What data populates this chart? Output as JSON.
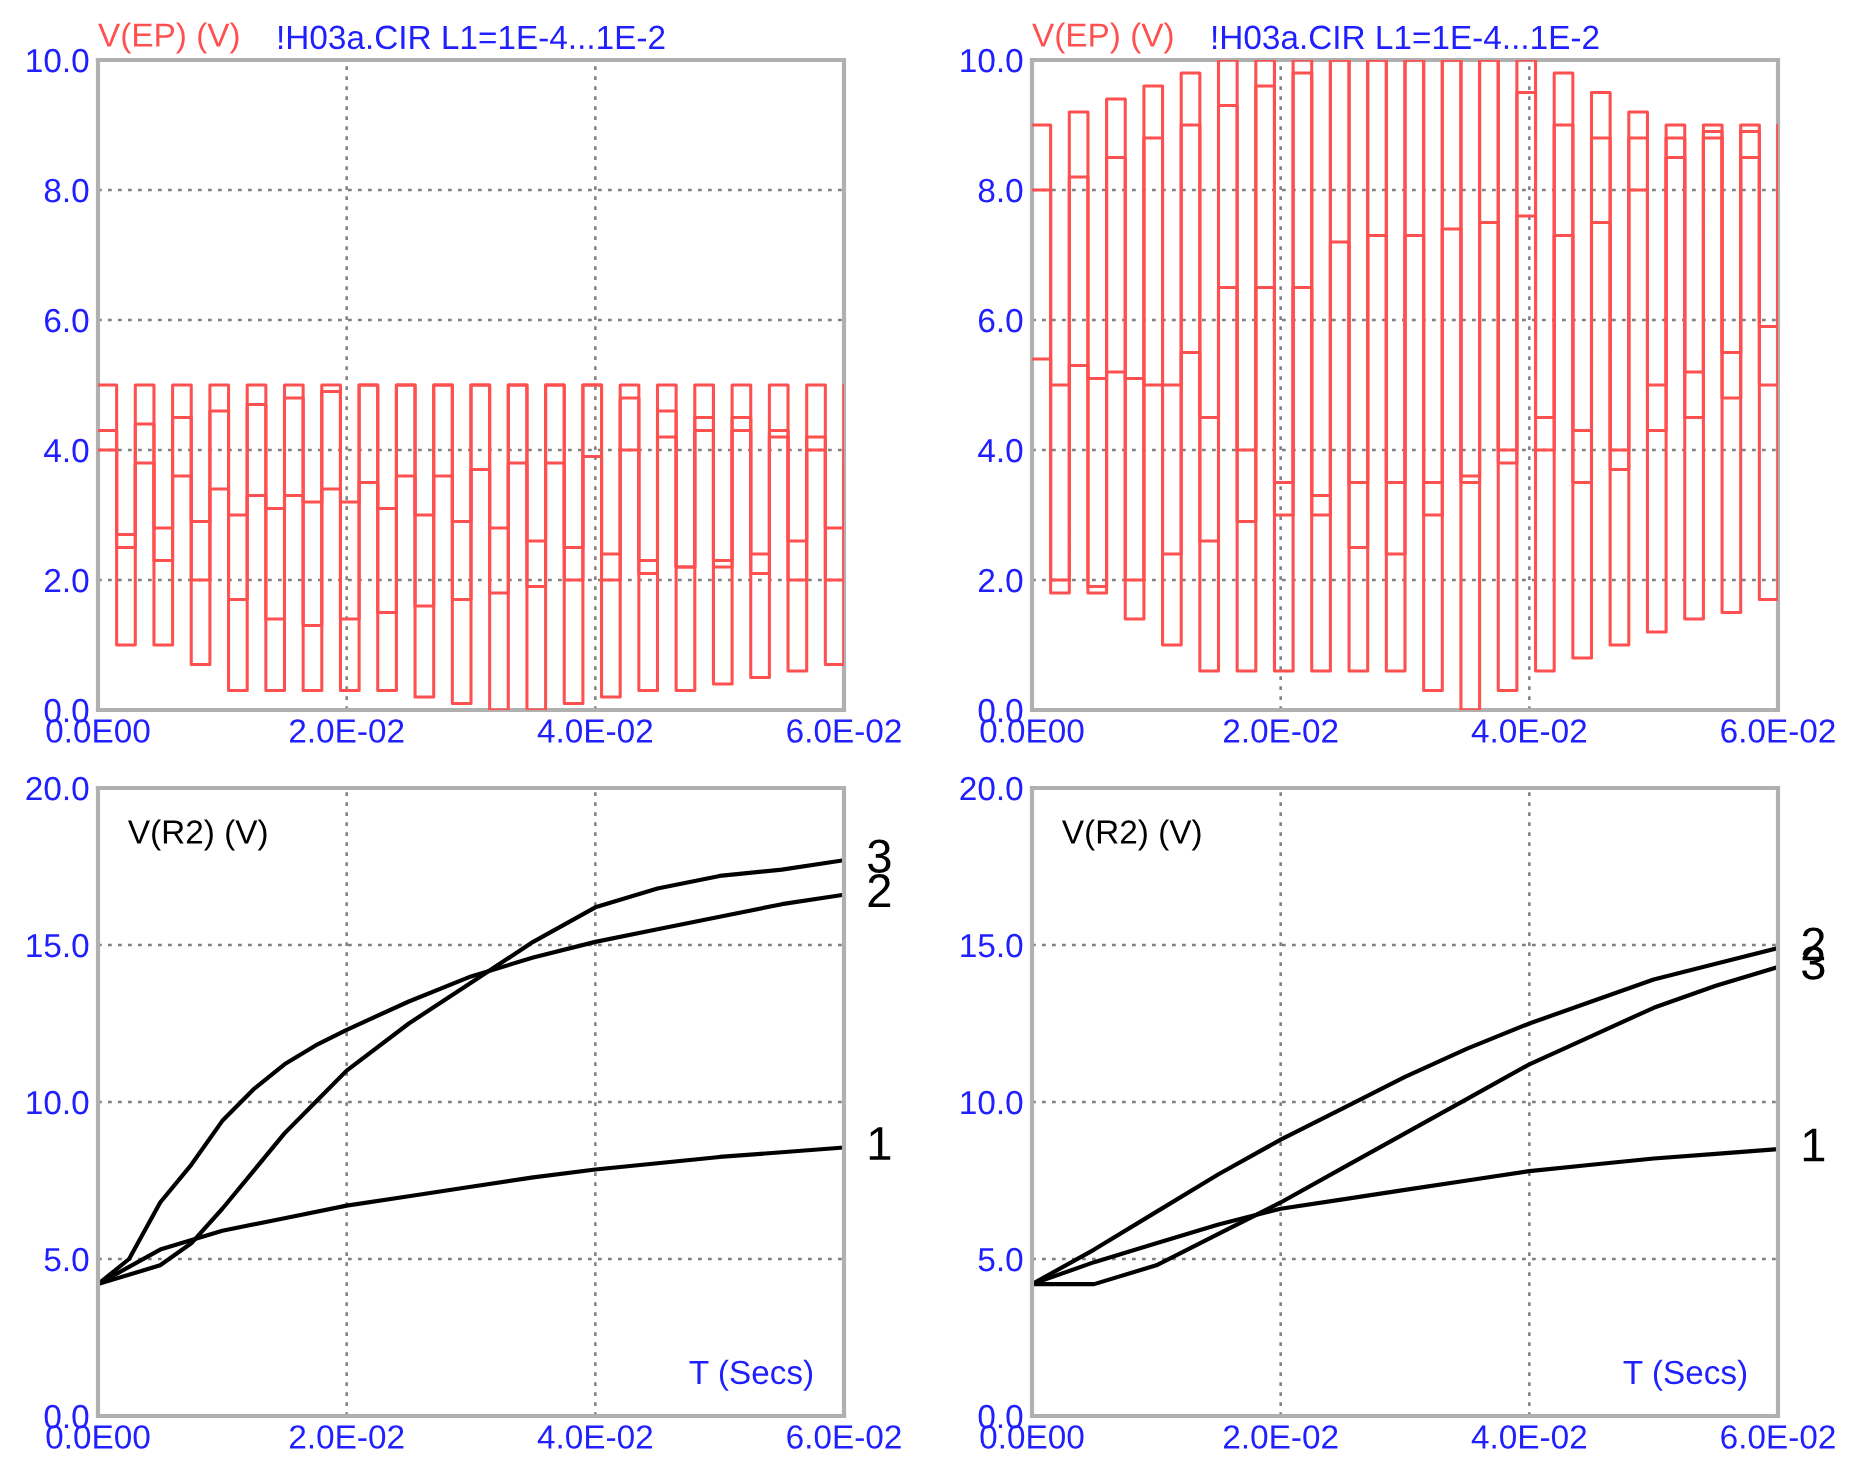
{
  "chart_data": [
    {
      "type": "step",
      "title": "!H03a.CIR L1=1E-4...1E-2",
      "ylabel": "V(EP) (V)",
      "grid": true,
      "xlim": [
        0,
        0.06
      ],
      "ylim": [
        0,
        10
      ],
      "xticks": [
        {
          "value": 0,
          "label": "0.0E00"
        },
        {
          "value": 0.02,
          "label": "2.0E-02"
        },
        {
          "value": 0.04,
          "label": "4.0E-02"
        },
        {
          "value": 0.06,
          "label": "6.0E-02"
        }
      ],
      "yticks": [
        {
          "value": 0,
          "label": "0.0"
        },
        {
          "value": 2,
          "label": "2.0"
        },
        {
          "value": 4,
          "label": "4.0"
        },
        {
          "value": 6,
          "label": "6.0"
        },
        {
          "value": 8,
          "label": "8.0"
        },
        {
          "value": 10,
          "label": "10.0"
        }
      ],
      "x": [
        0,
        0.0015,
        0.003,
        0.0045,
        0.006,
        0.0075,
        0.009,
        0.0105,
        0.012,
        0.0135,
        0.015,
        0.0165,
        0.018,
        0.0195,
        0.021,
        0.0225,
        0.024,
        0.0255,
        0.027,
        0.0285,
        0.03,
        0.0315,
        0.033,
        0.0345,
        0.036,
        0.0375,
        0.039,
        0.0405,
        0.042,
        0.0435,
        0.045,
        0.0465,
        0.048,
        0.0495,
        0.051,
        0.0525,
        0.054,
        0.0555,
        0.057,
        0.0585,
        0.06
      ],
      "series": [
        {
          "color": "#ff5050",
          "values": [
            5,
            1.0,
            5,
            1.0,
            5,
            0.7,
            5,
            0.3,
            5,
            0.3,
            5,
            0.3,
            5,
            0.3,
            5,
            0.3,
            5,
            0.2,
            5,
            0.1,
            5,
            0.0,
            5,
            0.0,
            5,
            0.1,
            5,
            0.2,
            5,
            0.3,
            5,
            0.3,
            5,
            0.4,
            5,
            0.5,
            5,
            0.6,
            5,
            0.7,
            5
          ]
        },
        {
          "color": "#ff5050",
          "values": [
            4.3,
            2.5,
            4.4,
            2.3,
            4.5,
            2.0,
            4.6,
            1.7,
            4.7,
            1.4,
            4.8,
            1.3,
            4.9,
            1.4,
            5.0,
            1.5,
            5.0,
            1.6,
            5.0,
            1.7,
            5.0,
            1.8,
            5.0,
            1.9,
            5.0,
            2.0,
            5.0,
            2.0,
            4.8,
            2.1,
            4.6,
            2.2,
            4.5,
            2.3,
            4.5,
            2.4,
            4.3,
            2.6,
            4.2,
            2.8,
            4.0
          ]
        },
        {
          "color": "#ff5050",
          "values": [
            4.0,
            2.7,
            3.8,
            2.8,
            3.6,
            2.9,
            3.4,
            3.0,
            3.3,
            3.1,
            3.3,
            3.2,
            3.4,
            3.2,
            3.5,
            3.1,
            3.6,
            3.0,
            3.6,
            2.9,
            3.7,
            2.8,
            3.8,
            2.6,
            3.8,
            2.5,
            3.9,
            2.4,
            4.0,
            2.3,
            4.2,
            2.2,
            4.3,
            2.2,
            4.3,
            2.1,
            4.2,
            2.0,
            4.0,
            2.0,
            3.8
          ]
        }
      ]
    },
    {
      "type": "step",
      "title": "!H03a.CIR L1=1E-4...1E-2",
      "ylabel": "V(EP) (V)",
      "grid": true,
      "xlim": [
        0,
        0.06
      ],
      "ylim": [
        0,
        10
      ],
      "xticks": [
        {
          "value": 0,
          "label": "0.0E00"
        },
        {
          "value": 0.02,
          "label": "2.0E-02"
        },
        {
          "value": 0.04,
          "label": "4.0E-02"
        },
        {
          "value": 0.06,
          "label": "6.0E-02"
        }
      ],
      "yticks": [
        {
          "value": 0,
          "label": "0.0"
        },
        {
          "value": 2,
          "label": "2.0"
        },
        {
          "value": 4,
          "label": "4.0"
        },
        {
          "value": 6,
          "label": "6.0"
        },
        {
          "value": 8,
          "label": "8.0"
        },
        {
          "value": 10,
          "label": "10.0"
        }
      ],
      "x": [
        0,
        0.0015,
        0.003,
        0.0045,
        0.006,
        0.0075,
        0.009,
        0.0105,
        0.012,
        0.0135,
        0.015,
        0.0165,
        0.018,
        0.0195,
        0.021,
        0.0225,
        0.024,
        0.0255,
        0.027,
        0.0285,
        0.03,
        0.0315,
        0.033,
        0.0345,
        0.036,
        0.0375,
        0.039,
        0.0405,
        0.042,
        0.0435,
        0.045,
        0.0465,
        0.048,
        0.0495,
        0.051,
        0.0525,
        0.054,
        0.0555,
        0.057,
        0.0585,
        0.06
      ],
      "series": [
        {
          "color": "#ff5050",
          "values": [
            9.0,
            2.0,
            9.2,
            1.8,
            9.4,
            1.4,
            9.6,
            1.0,
            9.8,
            0.6,
            10,
            0.6,
            10,
            0.6,
            10,
            0.6,
            10,
            0.6,
            10,
            0.6,
            10,
            0.3,
            10,
            0.0,
            10,
            0.3,
            10,
            0.6,
            9.8,
            0.8,
            9.5,
            1.0,
            9.2,
            1.2,
            9.0,
            1.4,
            9.0,
            1.5,
            9.0,
            1.7,
            9.0
          ]
        },
        {
          "color": "#ff5050",
          "values": [
            8.0,
            1.8,
            8.2,
            1.9,
            8.5,
            2.0,
            8.8,
            2.4,
            9.0,
            2.6,
            9.3,
            2.9,
            9.6,
            3.0,
            9.8,
            3.3,
            10,
            3.5,
            10,
            3.5,
            10,
            3.5,
            10,
            3.6,
            10,
            3.8,
            9.5,
            4.0,
            9.0,
            4.3,
            8.8,
            3.7,
            8.8,
            4.3,
            8.8,
            4.5,
            8.9,
            4.8,
            8.9,
            5.0,
            9.0
          ]
        },
        {
          "color": "#ff5050",
          "values": [
            5.4,
            5.0,
            5.3,
            5.1,
            5.2,
            5.1,
            5.0,
            5.0,
            5.5,
            4.5,
            6.5,
            4.0,
            6.5,
            3.5,
            6.5,
            3.0,
            7.2,
            2.5,
            7.3,
            2.4,
            7.3,
            3.0,
            7.4,
            3.5,
            7.5,
            4.0,
            7.6,
            4.5,
            7.3,
            3.5,
            7.5,
            4.0,
            8.0,
            5.0,
            8.5,
            5.2,
            8.8,
            5.5,
            8.5,
            5.9,
            8.0
          ]
        }
      ]
    },
    {
      "type": "line",
      "ylabel": "V(R2) (V)",
      "xlabel": "T (Secs)",
      "grid": true,
      "xlim": [
        0,
        0.06
      ],
      "ylim": [
        0,
        20
      ],
      "xticks": [
        {
          "value": 0,
          "label": "0.0E00"
        },
        {
          "value": 0.02,
          "label": "2.0E-02"
        },
        {
          "value": 0.04,
          "label": "4.0E-02"
        },
        {
          "value": 0.06,
          "label": "6.0E-02"
        }
      ],
      "yticks": [
        {
          "value": 0,
          "label": "0.0"
        },
        {
          "value": 5,
          "label": "5.0"
        },
        {
          "value": 10,
          "label": "10.0"
        },
        {
          "value": 15,
          "label": "15.0"
        },
        {
          "value": 20,
          "label": "20.0"
        }
      ],
      "series": [
        {
          "name": "1",
          "color": "#000000",
          "x": [
            0,
            0.005,
            0.01,
            0.015,
            0.02,
            0.025,
            0.03,
            0.035,
            0.04,
            0.045,
            0.05,
            0.055,
            0.06
          ],
          "values": [
            4.2,
            5.3,
            5.9,
            6.3,
            6.7,
            7.0,
            7.3,
            7.6,
            7.85,
            8.05,
            8.25,
            8.4,
            8.55
          ]
        },
        {
          "name": "2",
          "color": "#000000",
          "x": [
            0,
            0.0025,
            0.005,
            0.0075,
            0.01,
            0.0125,
            0.015,
            0.0175,
            0.02,
            0.025,
            0.03,
            0.035,
            0.04,
            0.045,
            0.05,
            0.055,
            0.06
          ],
          "values": [
            4.2,
            5.0,
            6.8,
            8.0,
            9.4,
            10.4,
            11.2,
            11.8,
            12.3,
            13.2,
            14.0,
            14.6,
            15.1,
            15.5,
            15.9,
            16.3,
            16.6
          ]
        },
        {
          "name": "3",
          "color": "#000000",
          "x": [
            0,
            0.005,
            0.0075,
            0.01,
            0.0125,
            0.015,
            0.0175,
            0.02,
            0.025,
            0.03,
            0.035,
            0.04,
            0.045,
            0.05,
            0.055,
            0.06
          ],
          "values": [
            4.2,
            4.8,
            5.5,
            6.6,
            7.8,
            9.0,
            10.0,
            11.0,
            12.5,
            13.8,
            15.1,
            16.2,
            16.8,
            17.2,
            17.4,
            17.7
          ]
        }
      ]
    },
    {
      "type": "line",
      "ylabel": "V(R2) (V)",
      "xlabel": "T (Secs)",
      "grid": true,
      "xlim": [
        0,
        0.06
      ],
      "ylim": [
        0,
        20
      ],
      "xticks": [
        {
          "value": 0,
          "label": "0.0E00"
        },
        {
          "value": 0.02,
          "label": "2.0E-02"
        },
        {
          "value": 0.04,
          "label": "4.0E-02"
        },
        {
          "value": 0.06,
          "label": "6.0E-02"
        }
      ],
      "yticks": [
        {
          "value": 0,
          "label": "0.0"
        },
        {
          "value": 5,
          "label": "5.0"
        },
        {
          "value": 10,
          "label": "10.0"
        },
        {
          "value": 15,
          "label": "15.0"
        },
        {
          "value": 20,
          "label": "20.0"
        }
      ],
      "series": [
        {
          "name": "1",
          "color": "#000000",
          "x": [
            0,
            0.005,
            0.01,
            0.015,
            0.02,
            0.025,
            0.03,
            0.035,
            0.04,
            0.045,
            0.05,
            0.055,
            0.06
          ],
          "values": [
            4.2,
            4.9,
            5.5,
            6.1,
            6.6,
            6.9,
            7.2,
            7.5,
            7.8,
            8.0,
            8.2,
            8.35,
            8.5
          ]
        },
        {
          "name": "2",
          "color": "#000000",
          "x": [
            0,
            0.005,
            0.01,
            0.015,
            0.02,
            0.025,
            0.03,
            0.035,
            0.04,
            0.045,
            0.05,
            0.055,
            0.06
          ],
          "values": [
            4.2,
            5.3,
            6.5,
            7.7,
            8.8,
            9.8,
            10.8,
            11.7,
            12.5,
            13.2,
            13.9,
            14.4,
            14.9
          ]
        },
        {
          "name": "3",
          "color": "#000000",
          "x": [
            0,
            0.005,
            0.01,
            0.015,
            0.02,
            0.025,
            0.03,
            0.035,
            0.04,
            0.045,
            0.05,
            0.055,
            0.06
          ],
          "values": [
            4.2,
            4.2,
            4.8,
            5.8,
            6.8,
            7.9,
            9.0,
            10.1,
            11.2,
            12.1,
            13.0,
            13.7,
            14.3
          ]
        }
      ]
    }
  ]
}
